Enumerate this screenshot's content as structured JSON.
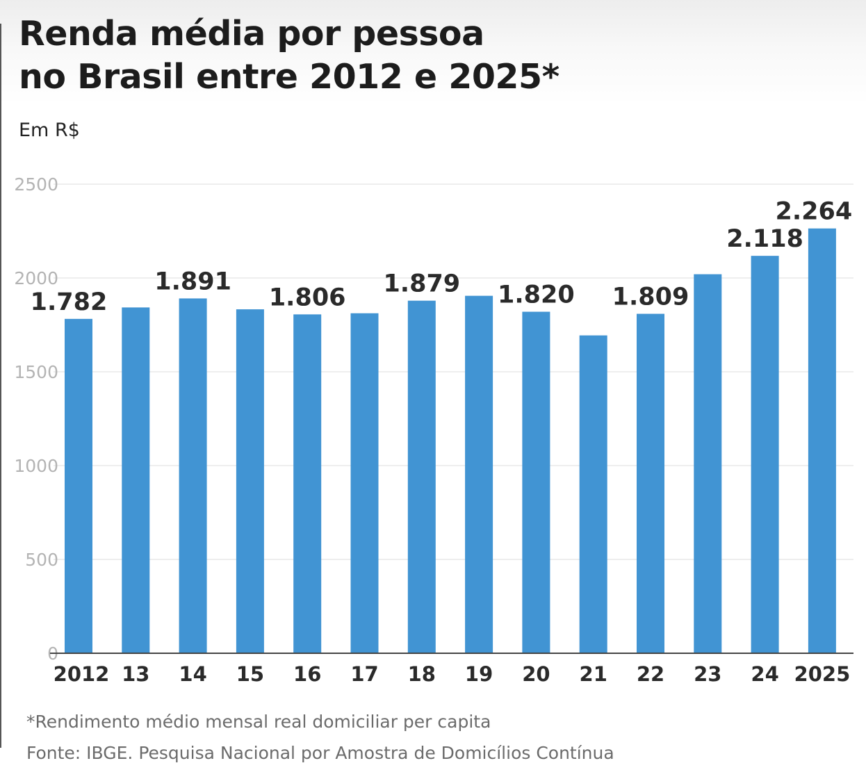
{
  "header": {
    "title_line1": "Renda média por pessoa",
    "title_line2": "no Brasil entre 2012 e 2025*",
    "unit": "Em R$"
  },
  "footer": {
    "footnote": "*Rendimento médio mensal real domiciliar per capita",
    "source": "Fonte: IBGE. Pesquisa Nacional por Amostra de Domicílios Contínua"
  },
  "colors": {
    "bar": "#4194d3",
    "grid": "#dddddd",
    "axis": "#444444",
    "tick_label": "#b3b3b3",
    "category_label": "#2a2a2a",
    "value_label": "#2a2a2a"
  },
  "chart_data": {
    "type": "bar",
    "title": "Renda média por pessoa no Brasil entre 2012 e 2025*",
    "ylabel": "Em R$",
    "xlabel": "",
    "categories": [
      "2012",
      "13",
      "14",
      "15",
      "16",
      "17",
      "18",
      "19",
      "20",
      "21",
      "22",
      "23",
      "24",
      "2025"
    ],
    "values": [
      1782,
      1843,
      1891,
      1833,
      1806,
      1812,
      1879,
      1905,
      1820,
      1694,
      1809,
      2020,
      2118,
      2264
    ],
    "value_labels": [
      "1.782",
      "",
      "1.891",
      "",
      "1.806",
      "",
      "1.879",
      "",
      "1.820",
      "",
      "1.809",
      "",
      "2.118",
      "2.264"
    ],
    "ylim": [
      0,
      2500
    ],
    "yticks": [
      "0",
      "500",
      "1000",
      "1500",
      "2000",
      "2500"
    ],
    "grid": true,
    "legend": "none"
  }
}
